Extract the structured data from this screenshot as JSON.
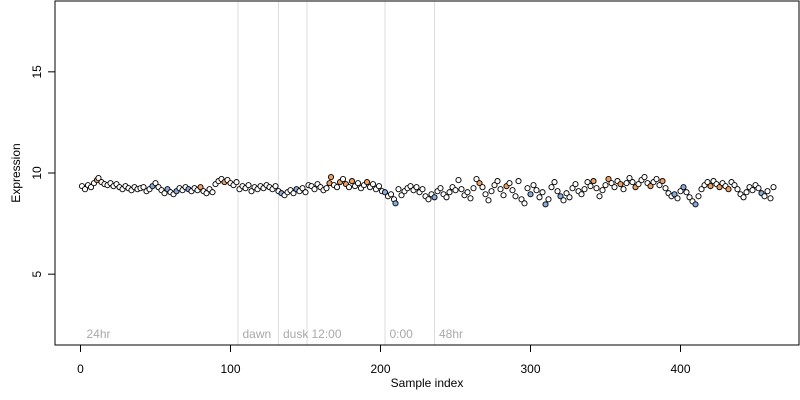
{
  "chart_data": {
    "type": "scatter",
    "xlabel": "Sample index",
    "ylabel": "Expression",
    "xlim": [
      -17,
      479
    ],
    "ylim": [
      1.5,
      18.5
    ],
    "x_ticks": [
      0,
      100,
      200,
      300,
      400
    ],
    "y_ticks": [
      5,
      10,
      15
    ],
    "grid": false,
    "point_colors": {
      "default": "#000000",
      "blue": "#87aadf",
      "orange": "#f0a060"
    },
    "annotations": [
      {
        "label": "24hr",
        "x": 2
      },
      {
        "label": "dawn",
        "x": 106
      },
      {
        "label": "dusk",
        "x": 133
      },
      {
        "label": "12:00",
        "x": 152
      },
      {
        "label": "0:00",
        "x": 204
      },
      {
        "label": "48hr",
        "x": 237
      }
    ],
    "vertical_lines": [
      105,
      132,
      151,
      203,
      236
    ],
    "points": [
      [
        1,
        9.35,
        "d"
      ],
      [
        3,
        9.2,
        "d"
      ],
      [
        5,
        9.4,
        "d"
      ],
      [
        7,
        9.3,
        "d"
      ],
      [
        9,
        9.5,
        "d"
      ],
      [
        11,
        9.65,
        "o"
      ],
      [
        12,
        9.75,
        "d"
      ],
      [
        14,
        9.55,
        "d"
      ],
      [
        16,
        9.45,
        "d"
      ],
      [
        18,
        9.4,
        "d"
      ],
      [
        20,
        9.5,
        "d"
      ],
      [
        22,
        9.35,
        "d"
      ],
      [
        24,
        9.45,
        "d"
      ],
      [
        26,
        9.3,
        "d"
      ],
      [
        28,
        9.2,
        "d"
      ],
      [
        30,
        9.35,
        "d"
      ],
      [
        32,
        9.25,
        "d"
      ],
      [
        34,
        9.15,
        "d"
      ],
      [
        36,
        9.3,
        "d"
      ],
      [
        38,
        9.2,
        "d"
      ],
      [
        40,
        9.25,
        "d"
      ],
      [
        42,
        9.3,
        "d"
      ],
      [
        44,
        9.1,
        "d"
      ],
      [
        46,
        9.2,
        "d"
      ],
      [
        48,
        9.35,
        "b"
      ],
      [
        50,
        9.5,
        "d"
      ],
      [
        52,
        9.3,
        "d"
      ],
      [
        54,
        9.15,
        "d"
      ],
      [
        56,
        9.0,
        "d"
      ],
      [
        58,
        9.2,
        "b"
      ],
      [
        60,
        9.05,
        "d"
      ],
      [
        62,
        8.95,
        "d"
      ],
      [
        64,
        9.1,
        "b"
      ],
      [
        66,
        9.25,
        "d"
      ],
      [
        68,
        9.15,
        "d"
      ],
      [
        70,
        9.3,
        "d"
      ],
      [
        72,
        9.2,
        "b"
      ],
      [
        74,
        9.1,
        "d"
      ],
      [
        76,
        9.25,
        "d"
      ],
      [
        78,
        9.15,
        "d"
      ],
      [
        80,
        9.3,
        "o"
      ],
      [
        82,
        9.1,
        "d"
      ],
      [
        84,
        9.0,
        "d"
      ],
      [
        86,
        9.2,
        "d"
      ],
      [
        88,
        9.05,
        "d"
      ],
      [
        90,
        9.45,
        "d"
      ],
      [
        92,
        9.6,
        "d"
      ],
      [
        94,
        9.7,
        "d"
      ],
      [
        96,
        9.55,
        "o"
      ],
      [
        98,
        9.65,
        "d"
      ],
      [
        100,
        9.5,
        "d"
      ],
      [
        102,
        9.4,
        "d"
      ],
      [
        104,
        9.55,
        "d"
      ],
      [
        106,
        9.2,
        "d"
      ],
      [
        108,
        9.35,
        "d"
      ],
      [
        110,
        9.25,
        "d"
      ],
      [
        112,
        9.4,
        "d"
      ],
      [
        114,
        9.1,
        "d"
      ],
      [
        116,
        9.3,
        "d"
      ],
      [
        118,
        9.2,
        "d"
      ],
      [
        120,
        9.35,
        "d"
      ],
      [
        122,
        9.25,
        "d"
      ],
      [
        124,
        9.4,
        "d"
      ],
      [
        126,
        9.3,
        "d"
      ],
      [
        128,
        9.2,
        "d"
      ],
      [
        130,
        9.35,
        "d"
      ],
      [
        132,
        9.1,
        "d"
      ],
      [
        134,
        9.0,
        "b"
      ],
      [
        136,
        8.9,
        "d"
      ],
      [
        138,
        9.05,
        "d"
      ],
      [
        140,
        9.15,
        "d"
      ],
      [
        142,
        9.0,
        "d"
      ],
      [
        144,
        9.2,
        "b"
      ],
      [
        146,
        9.1,
        "d"
      ],
      [
        148,
        9.25,
        "d"
      ],
      [
        150,
        9.05,
        "d"
      ],
      [
        152,
        9.4,
        "d"
      ],
      [
        154,
        9.35,
        "d"
      ],
      [
        156,
        9.2,
        "d"
      ],
      [
        158,
        9.45,
        "d"
      ],
      [
        160,
        9.3,
        "d"
      ],
      [
        162,
        9.15,
        "d"
      ],
      [
        164,
        9.25,
        "d"
      ],
      [
        166,
        9.5,
        "o"
      ],
      [
        167,
        9.8,
        "o"
      ],
      [
        169,
        9.4,
        "d"
      ],
      [
        171,
        9.3,
        "d"
      ],
      [
        173,
        9.55,
        "o"
      ],
      [
        175,
        9.7,
        "d"
      ],
      [
        177,
        9.45,
        "o"
      ],
      [
        179,
        9.3,
        "d"
      ],
      [
        181,
        9.6,
        "o"
      ],
      [
        183,
        9.35,
        "d"
      ],
      [
        185,
        9.5,
        "d"
      ],
      [
        187,
        9.25,
        "d"
      ],
      [
        189,
        9.4,
        "d"
      ],
      [
        191,
        9.55,
        "o"
      ],
      [
        193,
        9.3,
        "d"
      ],
      [
        195,
        9.45,
        "d"
      ],
      [
        197,
        9.2,
        "d"
      ],
      [
        199,
        9.35,
        "d"
      ],
      [
        201,
        9.1,
        "d"
      ],
      [
        203,
        9.05,
        "b"
      ],
      [
        205,
        8.85,
        "d"
      ],
      [
        207,
        8.95,
        "d"
      ],
      [
        209,
        8.7,
        "d"
      ],
      [
        210,
        8.5,
        "b"
      ],
      [
        212,
        9.2,
        "d"
      ],
      [
        214,
        8.9,
        "d"
      ],
      [
        216,
        9.1,
        "d"
      ],
      [
        218,
        9.25,
        "d"
      ],
      [
        220,
        9.35,
        "d"
      ],
      [
        222,
        9.15,
        "d"
      ],
      [
        224,
        9.3,
        "d"
      ],
      [
        226,
        9.05,
        "d"
      ],
      [
        228,
        9.2,
        "d"
      ],
      [
        230,
        8.85,
        "d"
      ],
      [
        232,
        8.7,
        "d"
      ],
      [
        234,
        8.95,
        "d"
      ],
      [
        236,
        8.8,
        "b"
      ],
      [
        238,
        9.1,
        "d"
      ],
      [
        240,
        9.25,
        "d"
      ],
      [
        242,
        8.95,
        "d"
      ],
      [
        244,
        8.8,
        "d"
      ],
      [
        246,
        9.05,
        "d"
      ],
      [
        248,
        9.3,
        "d"
      ],
      [
        250,
        9.15,
        "d"
      ],
      [
        252,
        9.65,
        "d"
      ],
      [
        254,
        9.2,
        "d"
      ],
      [
        256,
        8.9,
        "d"
      ],
      [
        258,
        9.05,
        "d"
      ],
      [
        260,
        8.75,
        "d"
      ],
      [
        262,
        9.25,
        "d"
      ],
      [
        264,
        9.7,
        "d"
      ],
      [
        266,
        9.5,
        "o"
      ],
      [
        268,
        9.3,
        "d"
      ],
      [
        270,
        8.95,
        "d"
      ],
      [
        272,
        8.65,
        "d"
      ],
      [
        274,
        9.1,
        "d"
      ],
      [
        276,
        9.4,
        "d"
      ],
      [
        278,
        9.6,
        "d"
      ],
      [
        280,
        9.2,
        "d"
      ],
      [
        282,
        8.9,
        "d"
      ],
      [
        284,
        9.35,
        "o"
      ],
      [
        286,
        9.5,
        "d"
      ],
      [
        288,
        9.15,
        "d"
      ],
      [
        290,
        8.85,
        "d"
      ],
      [
        292,
        9.6,
        "d"
      ],
      [
        294,
        8.7,
        "d"
      ],
      [
        296,
        8.5,
        "d"
      ],
      [
        298,
        9.25,
        "d"
      ],
      [
        300,
        8.95,
        "b"
      ],
      [
        302,
        9.4,
        "d"
      ],
      [
        304,
        9.15,
        "d"
      ],
      [
        306,
        8.8,
        "d"
      ],
      [
        308,
        9.05,
        "d"
      ],
      [
        310,
        8.45,
        "b"
      ],
      [
        312,
        8.7,
        "d"
      ],
      [
        314,
        9.3,
        "d"
      ],
      [
        316,
        9.55,
        "d"
      ],
      [
        318,
        9.1,
        "d"
      ],
      [
        320,
        8.85,
        "b"
      ],
      [
        322,
        8.65,
        "d"
      ],
      [
        324,
        9.0,
        "d"
      ],
      [
        326,
        8.8,
        "d"
      ],
      [
        328,
        9.25,
        "d"
      ],
      [
        330,
        9.45,
        "d"
      ],
      [
        332,
        9.1,
        "d"
      ],
      [
        334,
        8.95,
        "d"
      ],
      [
        336,
        9.2,
        "d"
      ],
      [
        338,
        9.55,
        "d"
      ],
      [
        340,
        9.35,
        "d"
      ],
      [
        342,
        9.6,
        "o"
      ],
      [
        344,
        9.25,
        "d"
      ],
      [
        346,
        8.85,
        "d"
      ],
      [
        348,
        9.15,
        "d"
      ],
      [
        350,
        9.4,
        "d"
      ],
      [
        352,
        9.7,
        "o"
      ],
      [
        354,
        9.5,
        "d"
      ],
      [
        356,
        9.3,
        "d"
      ],
      [
        358,
        9.6,
        "d"
      ],
      [
        360,
        9.45,
        "o"
      ],
      [
        362,
        9.2,
        "d"
      ],
      [
        364,
        9.5,
        "d"
      ],
      [
        366,
        9.75,
        "d"
      ],
      [
        368,
        9.55,
        "d"
      ],
      [
        370,
        9.3,
        "o"
      ],
      [
        372,
        9.45,
        "d"
      ],
      [
        374,
        9.65,
        "d"
      ],
      [
        376,
        9.8,
        "d"
      ],
      [
        378,
        9.5,
        "d"
      ],
      [
        380,
        9.35,
        "o"
      ],
      [
        382,
        9.55,
        "d"
      ],
      [
        384,
        9.7,
        "d"
      ],
      [
        386,
        9.4,
        "d"
      ],
      [
        388,
        9.6,
        "o"
      ],
      [
        390,
        9.25,
        "d"
      ],
      [
        392,
        9.0,
        "d"
      ],
      [
        394,
        8.85,
        "d"
      ],
      [
        396,
        8.95,
        "b"
      ],
      [
        398,
        8.75,
        "d"
      ],
      [
        400,
        9.1,
        "d"
      ],
      [
        402,
        9.3,
        "b"
      ],
      [
        404,
        9.05,
        "d"
      ],
      [
        406,
        8.8,
        "d"
      ],
      [
        408,
        8.6,
        "d"
      ],
      [
        410,
        8.45,
        "b"
      ],
      [
        412,
        8.85,
        "d"
      ],
      [
        414,
        9.2,
        "d"
      ],
      [
        416,
        9.4,
        "d"
      ],
      [
        418,
        9.55,
        "d"
      ],
      [
        420,
        9.35,
        "o"
      ],
      [
        422,
        9.6,
        "d"
      ],
      [
        424,
        9.45,
        "d"
      ],
      [
        426,
        9.3,
        "o"
      ],
      [
        428,
        9.5,
        "d"
      ],
      [
        430,
        9.35,
        "d"
      ],
      [
        432,
        9.2,
        "o"
      ],
      [
        434,
        9.55,
        "d"
      ],
      [
        436,
        9.4,
        "d"
      ],
      [
        438,
        9.2,
        "d"
      ],
      [
        440,
        8.95,
        "d"
      ],
      [
        442,
        8.8,
        "d"
      ],
      [
        444,
        9.05,
        "d"
      ],
      [
        446,
        9.3,
        "d"
      ],
      [
        448,
        9.15,
        "d"
      ],
      [
        450,
        9.4,
        "d"
      ],
      [
        452,
        9.25,
        "d"
      ],
      [
        454,
        9.0,
        "b"
      ],
      [
        456,
        8.85,
        "d"
      ],
      [
        458,
        9.1,
        "d"
      ],
      [
        460,
        8.75,
        "d"
      ],
      [
        462,
        9.3,
        "d"
      ]
    ]
  }
}
